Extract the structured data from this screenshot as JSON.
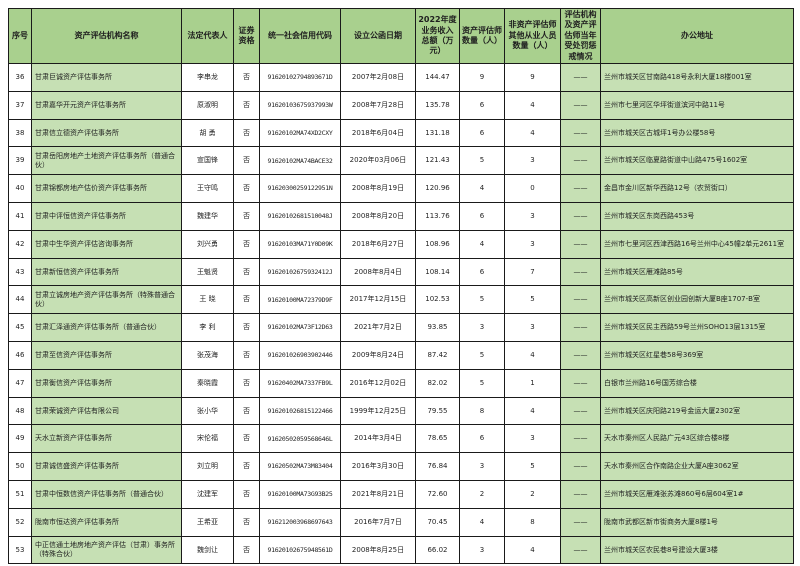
{
  "colors": {
    "header_bg": "#a9d08e",
    "tint_bg": "#c6e0b4",
    "border": "#1a1a1a",
    "text": "#1f1f1f"
  },
  "table": {
    "headers": [
      "序号",
      "资产评估机构名称",
      "法定代表人",
      "证券资格",
      "统一社会信用代码",
      "设立公函日期",
      "2022年度业务收入总额（万元）",
      "资产评估师数量（人）",
      "非资产评估师其他从业人员数量（人）",
      "评估机构及资产评估师当年受处罚惩戒情况",
      "办公地址"
    ],
    "rows": [
      {
        "no": "36",
        "name": "甘肃巨诚资产评估事务所",
        "rep": "李串龙",
        "sec": "否",
        "code": "91620102794893671D",
        "date": "2007年2月08日",
        "income": "144.47",
        "appraisers": "9",
        "staff": "9",
        "penalty": "——",
        "address": "兰州市城关区甘南路418号永利大厦18楼001室"
      },
      {
        "no": "37",
        "name": "甘肃嘉华开元资产评估事务所",
        "rep": "原淑明",
        "sec": "否",
        "code": "91620103675937993W",
        "date": "2008年7月28日",
        "income": "135.78",
        "appraisers": "6",
        "staff": "4",
        "penalty": "——",
        "address": "兰州市七里河区华坪街道滨河中路11号"
      },
      {
        "no": "38",
        "name": "甘肃信立德资产评估事务所",
        "rep": "胡  勇",
        "sec": "否",
        "code": "91620102MA74XD2CXY",
        "date": "2018年6月04日",
        "income": "131.18",
        "appraisers": "6",
        "staff": "4",
        "penalty": "——",
        "address": "兰州市城关区古城坪1号办公楼58号"
      },
      {
        "no": "39",
        "name": "甘肃岳阳房地产土地资产评估事务所（普通合伙）",
        "rep": "宣国锋",
        "sec": "否",
        "code": "91620102MA74BACE32",
        "date": "2020年03月06日",
        "income": "121.43",
        "appraisers": "5",
        "staff": "3",
        "penalty": "——",
        "address": "兰州市城关区临夏路街道中山路475号1602室"
      },
      {
        "no": "40",
        "name": "甘肃锦都房地产估价资产评估事务所",
        "rep": "王守鸣",
        "sec": "否",
        "code": "91620300259122951N",
        "date": "2008年8月19日",
        "income": "120.96",
        "appraisers": "4",
        "staff": "0",
        "penalty": "——",
        "address": "金昌市金川区新华西路12号（农贸街口）"
      },
      {
        "no": "41",
        "name": "甘肃中评恒信资产评估事务所",
        "rep": "魏建华",
        "sec": "否",
        "code": "91620102681510048J",
        "date": "2008年8月20日",
        "income": "113.76",
        "appraisers": "6",
        "staff": "3",
        "penalty": "——",
        "address": "兰州市城关区东岗西路453号"
      },
      {
        "no": "42",
        "name": "甘肃中生华资产评估咨询事务所",
        "rep": "刘兴勇",
        "sec": "否",
        "code": "91620103MA71Y0D09K",
        "date": "2018年6月27日",
        "income": "108.96",
        "appraisers": "4",
        "staff": "3",
        "penalty": "——",
        "address": "兰州市七里河区西津西路16号兰州中心45幢2单元2611室"
      },
      {
        "no": "43",
        "name": "甘肃新恒信资产评估事务所",
        "rep": "王魁贤",
        "sec": "否",
        "code": "91620102675932412J",
        "date": "2008年8月4日",
        "income": "108.14",
        "appraisers": "6",
        "staff": "7",
        "penalty": "——",
        "address": "兰州市城关区雁滩路85号"
      },
      {
        "no": "44",
        "name": "甘肃立诚房地产资产评估事务所（特殊普通合伙）",
        "rep": "王  晓",
        "sec": "否",
        "code": "91620100MA72379D9F",
        "date": "2017年12月15日",
        "income": "102.53",
        "appraisers": "5",
        "staff": "5",
        "penalty": "——",
        "address": "兰州市城关区高新区创业园创新大厦B座1707-B室"
      },
      {
        "no": "45",
        "name": "甘肃汇泽通资产评估事务所（普通合伙）",
        "rep": "李  利",
        "sec": "否",
        "code": "91620102MA73F12D63",
        "date": "2021年7月2日",
        "income": "93.85",
        "appraisers": "3",
        "staff": "3",
        "penalty": "——",
        "address": "兰州市城关区民主西路59号兰州SOHO13层1315室"
      },
      {
        "no": "46",
        "name": "甘肃至信资产评估事务所",
        "rep": "张茂海",
        "sec": "否",
        "code": "916201026903902446",
        "date": "2009年8月24日",
        "income": "87.42",
        "appraisers": "5",
        "staff": "4",
        "penalty": "——",
        "address": "兰州市城关区红星巷58号369室"
      },
      {
        "no": "47",
        "name": "甘肃衡信资产评估事务所",
        "rep": "秦晓霞",
        "sec": "否",
        "code": "91620402MA7337FB9L",
        "date": "2016年12月02日",
        "income": "82.02",
        "appraisers": "5",
        "staff": "1",
        "penalty": "——",
        "address": "白银市兰州路16号国芳综合楼"
      },
      {
        "no": "48",
        "name": "甘肃荣诚资产评估有限公司",
        "rep": "张小华",
        "sec": "否",
        "code": "916201026815122466",
        "date": "1999年12月25日",
        "income": "79.55",
        "appraisers": "8",
        "staff": "4",
        "penalty": "——",
        "address": "兰州市城关区庆阳路219号金运大厦2302室"
      },
      {
        "no": "49",
        "name": "天水立新资产评估事务所",
        "rep": "宋伦福",
        "sec": "否",
        "code": "91620502059568646L",
        "date": "2014年3月4日",
        "income": "78.65",
        "appraisers": "6",
        "staff": "3",
        "penalty": "——",
        "address": "天水市秦州区人民路广元43区综合楼8楼"
      },
      {
        "no": "50",
        "name": "甘肃诚信盛资产评估事务所",
        "rep": "刘立明",
        "sec": "否",
        "code": "91620502MA73M83404",
        "date": "2016年3月30日",
        "income": "76.84",
        "appraisers": "3",
        "staff": "5",
        "penalty": "——",
        "address": "天水市秦州区合作南路企业大厦A座3062室"
      },
      {
        "no": "51",
        "name": "甘肃中恒数信资产评估事务所（普通合伙）",
        "rep": "沈建军",
        "sec": "否",
        "code": "91620100MA73G93B25",
        "date": "2021年8月21日",
        "income": "72.60",
        "appraisers": "2",
        "staff": "2",
        "penalty": "——",
        "address": "兰州市城关区雁滩张苏滩860号6层604室1#"
      },
      {
        "no": "52",
        "name": "陇南市恒达资产评估事务所",
        "rep": "王希亚",
        "sec": "否",
        "code": "916212003968697643",
        "date": "2016年7月7日",
        "income": "70.45",
        "appraisers": "4",
        "staff": "8",
        "penalty": "——",
        "address": "陇南市武都区新市街商务大厦8楼1号"
      },
      {
        "no": "53",
        "name": "中正信通土地房地产资产评估（甘肃）事务所（特殊合伙）",
        "rep": "魏剑让",
        "sec": "否",
        "code": "91620102675948561D",
        "date": "2008年8月25日",
        "income": "66.02",
        "appraisers": "3",
        "staff": "4",
        "penalty": "——",
        "address": "兰州市城关区农民巷8号建设大厦3楼"
      }
    ]
  }
}
